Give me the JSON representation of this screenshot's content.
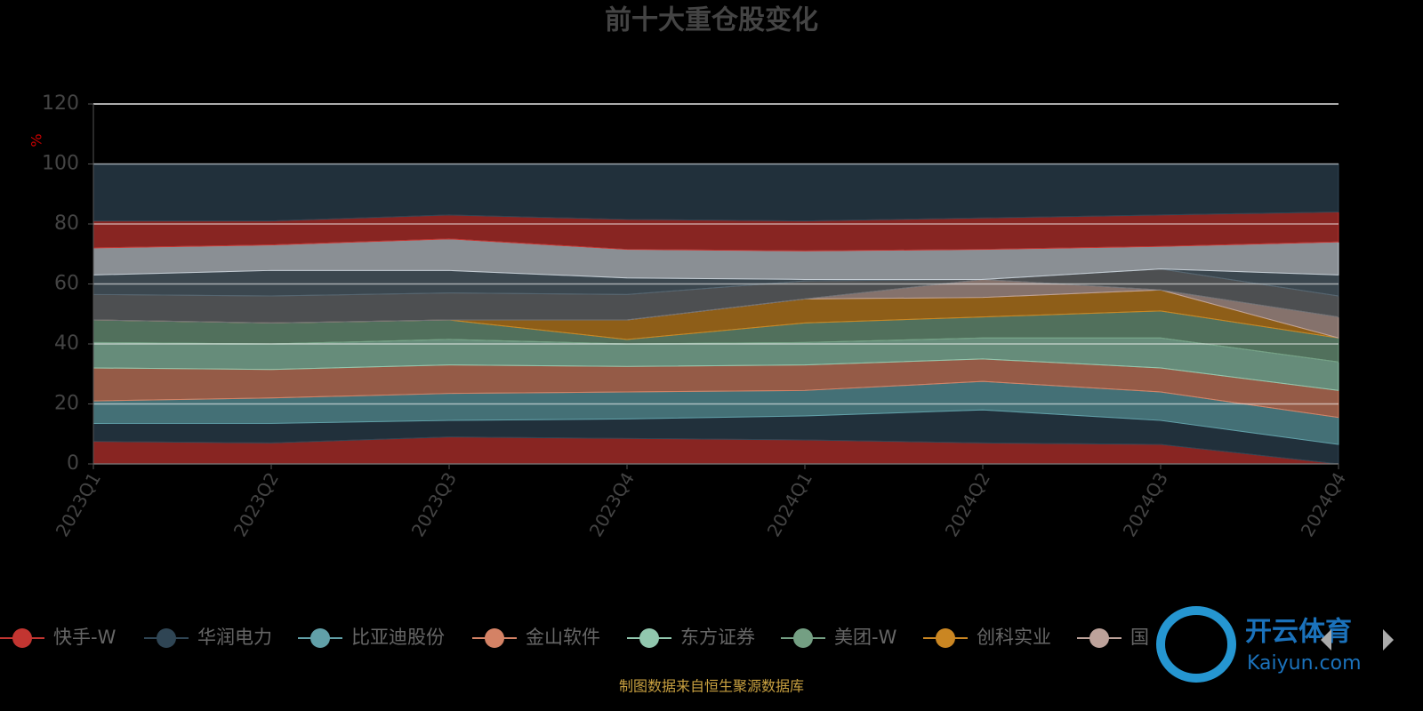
{
  "chart_data": {
    "type": "stacked-area",
    "title": "前十大重仓股变化",
    "y_label": "%",
    "source": "制图数据来自恒生聚源数据库",
    "watermark": [
      "开云体育",
      "Kaiyun.com"
    ],
    "categories": [
      "2023Q1",
      "2023Q2",
      "2023Q3",
      "2023Q4",
      "2024Q1",
      "2024Q2",
      "2024Q3",
      "2024Q4"
    ],
    "ylim": [
      0,
      120
    ],
    "yticks": [
      0,
      20,
      40,
      60,
      80,
      100,
      120
    ],
    "grid": true,
    "legend": "bottom",
    "fill_opacity": 0.7,
    "series": [
      {
        "name": "快手-W",
        "color": "#c23531",
        "values": [
          7.5,
          7,
          9,
          8.5,
          8,
          7,
          6.5,
          0
        ]
      },
      {
        "name": "华润电力",
        "color": "#2f4554",
        "values": [
          6,
          6.5,
          5.5,
          6.5,
          8,
          11,
          8,
          6.5
        ]
      },
      {
        "name": "比亚迪股份",
        "color": "#61a0a8",
        "values": [
          7.5,
          8.5,
          9,
          9,
          8.5,
          9.5,
          9.5,
          9
        ]
      },
      {
        "name": "金山软件",
        "color": "#d48265",
        "values": [
          11,
          9.5,
          9.5,
          8.5,
          8.5,
          7.5,
          8,
          9
        ]
      },
      {
        "name": "东方证券",
        "color": "#91c7ae",
        "values": [
          8.5,
          8.5,
          8.5,
          7.5,
          7.5,
          7,
          10,
          9.5
        ]
      },
      {
        "name": "美团-W",
        "color": "#749f83",
        "values": [
          7.5,
          7,
          6.5,
          1.5,
          6.5,
          7,
          9,
          8
        ]
      },
      {
        "name": "创科实业",
        "color": "#ca8622",
        "values": [
          0,
          0,
          0,
          6.5,
          8,
          6.5,
          7,
          0
        ]
      },
      {
        "name": "国",
        "color": "#bda29a",
        "values": [
          0,
          0,
          0,
          0,
          0,
          6,
          0,
          7
        ]
      },
      {
        "color": "#6e7074",
        "values": [
          8.5,
          9,
          9,
          8.5,
          6,
          0,
          7,
          7
        ]
      },
      {
        "color": "#546570",
        "values": [
          6.5,
          8.5,
          7.5,
          5.5,
          0.5,
          0,
          0,
          7
        ]
      },
      {
        "color": "#c4ccd3",
        "values": [
          9,
          8.5,
          10.5,
          9.5,
          9.5,
          10,
          7.5,
          11
        ]
      },
      {
        "color": "#c23531",
        "values": [
          9,
          8,
          8,
          10,
          10,
          10.5,
          10.5,
          10
        ]
      },
      {
        "color": "#2f4554",
        "values": [
          19,
          19,
          17,
          18.5,
          19,
          18,
          17,
          16
        ]
      }
    ]
  }
}
